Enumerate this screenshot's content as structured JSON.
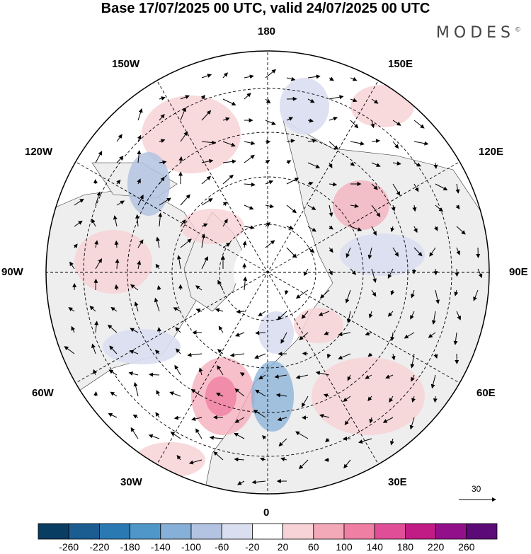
{
  "title": "Base 17/07/2025 00 UTC, valid 24/07/2025 00 UTC",
  "brand": "MODES",
  "brand_mark": "©",
  "map": {
    "projection": "north-polar-stereographic",
    "longitude_labels": [
      "180",
      "150E",
      "120E",
      "90E",
      "60E",
      "30E",
      "0",
      "30W",
      "60W",
      "90W",
      "120W",
      "150W"
    ],
    "vector_reference_label": "30",
    "land_color": "#eeeeee",
    "ocean_color": "#ffffff"
  },
  "colorbar": {
    "ticks": [
      "-260",
      "-220",
      "-180",
      "-140",
      "-100",
      "-60",
      "-20",
      "20",
      "60",
      "100",
      "140",
      "180",
      "220",
      "260"
    ],
    "colors": [
      "#0a3d62",
      "#1b5d91",
      "#2a79b3",
      "#4f97c8",
      "#86b0d8",
      "#b3c3e2",
      "#d9def0",
      "#ffffff",
      "#f7d2d6",
      "#f4a9b8",
      "#ef7fa3",
      "#e04e98",
      "#c11b85",
      "#92108a",
      "#5c0a78"
    ]
  }
}
